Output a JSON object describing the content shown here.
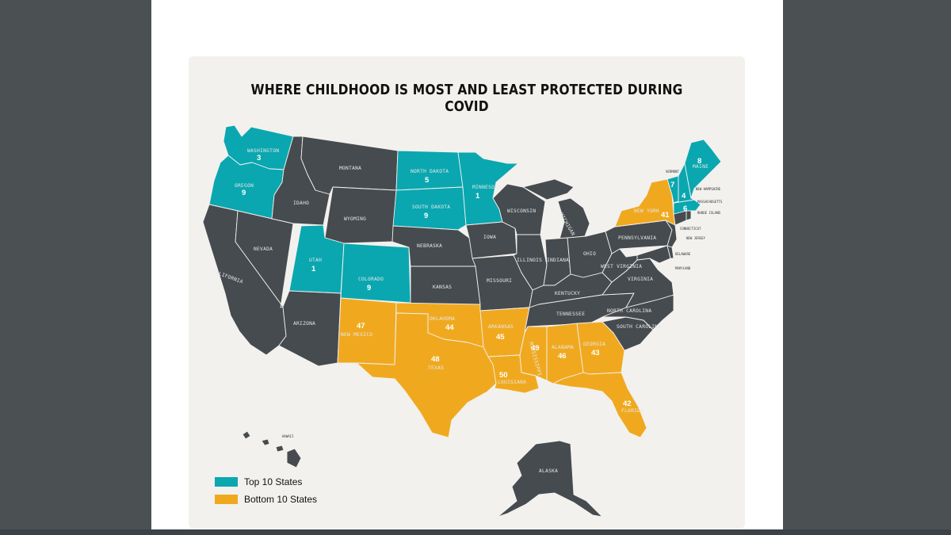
{
  "title": "WHERE CHILDHOOD IS MOST AND LEAST PROTECTED DURING COVID",
  "colors": {
    "top": "#0aa7b0",
    "bottom": "#f0a91f",
    "other": "#464b4f",
    "background": "#f2f1ee"
  },
  "legend": {
    "top_label": "Top 10 States",
    "bottom_label": "Bottom 10 States"
  },
  "states": {
    "washington": {
      "name": "WASHINGTON",
      "rank": "3"
    },
    "oregon": {
      "name": "OREGON",
      "rank": "9"
    },
    "california": {
      "name": "CALIFORNIA"
    },
    "nevada": {
      "name": "NEVADA"
    },
    "idaho": {
      "name": "IDAHO"
    },
    "montana": {
      "name": "MONTANA"
    },
    "wyoming": {
      "name": "WYOMING"
    },
    "utah": {
      "name": "UTAH",
      "rank": "1"
    },
    "colorado": {
      "name": "COLORADO",
      "rank": "9"
    },
    "arizona": {
      "name": "ARIZONA"
    },
    "new_mexico": {
      "name": "NEW MEXICO",
      "rank": "47"
    },
    "north_dakota": {
      "name": "NORTH DAKOTA",
      "rank": "5"
    },
    "south_dakota": {
      "name": "SOUTH DAKOTA",
      "rank": "9"
    },
    "nebraska": {
      "name": "NEBRASKA"
    },
    "kansas": {
      "name": "KANSAS"
    },
    "oklahoma": {
      "name": "OKLAHOMA",
      "rank": "44"
    },
    "texas": {
      "name": "TEXAS",
      "rank": "48"
    },
    "minnesota": {
      "name": "MINNESOTA",
      "rank": "1"
    },
    "iowa": {
      "name": "IOWA"
    },
    "missouri": {
      "name": "MISSOURI"
    },
    "arkansas": {
      "name": "ARKANSAS",
      "rank": "45"
    },
    "louisiana": {
      "name": "LOUISIANA",
      "rank": "50"
    },
    "wisconsin": {
      "name": "WISCONSIN"
    },
    "illinois": {
      "name": "ILLINOIS"
    },
    "michigan": {
      "name": "MICHIGAN"
    },
    "indiana": {
      "name": "INDIANA"
    },
    "ohio": {
      "name": "OHIO"
    },
    "kentucky": {
      "name": "KENTUCKY"
    },
    "tennessee": {
      "name": "TENNESSEE"
    },
    "mississippi": {
      "name": "MISSISSIPPI",
      "rank": "49"
    },
    "alabama": {
      "name": "ALABAMA",
      "rank": "46"
    },
    "georgia": {
      "name": "GEORGIA",
      "rank": "43"
    },
    "florida": {
      "name": "FLORIDA",
      "rank": "42"
    },
    "south_carolina": {
      "name": "SOUTH CAROLINA"
    },
    "north_carolina": {
      "name": "NORTH CAROLINA"
    },
    "virginia": {
      "name": "VIRGINIA"
    },
    "west_virginia": {
      "name": "WEST VIRGINIA"
    },
    "pennsylvania": {
      "name": "PENNSYLVANIA"
    },
    "new_york": {
      "name": "NEW YORK",
      "rank": "41"
    },
    "vermont": {
      "name": "VERMONT",
      "rank": "7"
    },
    "new_hampshire": {
      "name": "NEW HAMPSHIRE",
      "rank": "4"
    },
    "maine": {
      "name": "MAINE",
      "rank": "8"
    },
    "massachusetts": {
      "name": "MASSACHUSETTS",
      "rank": "6"
    },
    "rhode_island": {
      "name": "RHODE ISLAND"
    },
    "connecticut": {
      "name": "CONNECTICUT"
    },
    "new_jersey": {
      "name": "NEW JERSEY"
    },
    "delaware": {
      "name": "DELAWARE"
    },
    "maryland": {
      "name": "MARYLAND"
    },
    "hawaii": {
      "name": "HAWAII"
    },
    "alaska": {
      "name": "ALASKA"
    }
  }
}
